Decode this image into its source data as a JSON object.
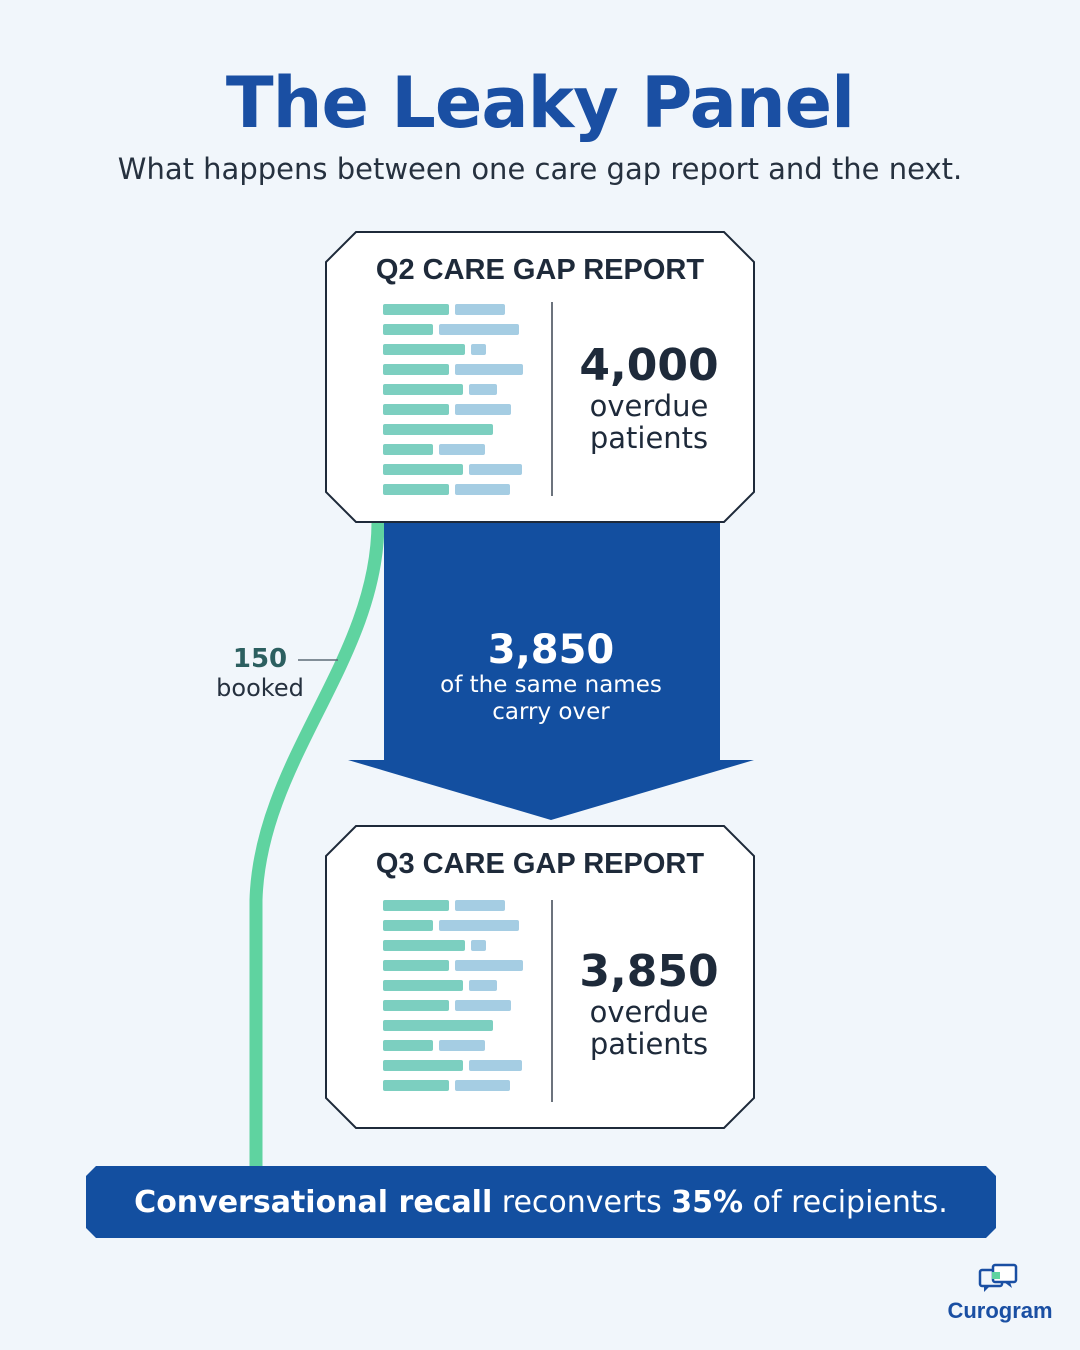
{
  "title": "The Leaky Panel",
  "subtitle": "What happens between one care gap report and the next.",
  "cards": [
    {
      "title": "Q2 CARE GAP REPORT",
      "value": "4,000",
      "unit_line1": "overdue",
      "unit_line2": "patients"
    },
    {
      "title": "Q3 CARE GAP REPORT",
      "value": "3,850",
      "unit_line1": "overdue",
      "unit_line2": "patients"
    }
  ],
  "carry_over": {
    "value": "3,850",
    "line1": "of the same names",
    "line2": "carry over"
  },
  "booked": {
    "value": "150",
    "label": "booked"
  },
  "banner": {
    "part1": "Conversational recall",
    "part2": " reconverts ",
    "part3": "35%",
    "part4": " of recipients."
  },
  "brand": {
    "name": "Curogram",
    "icon": "chat-bubbles-icon"
  },
  "colors": {
    "primary_blue": "#1a4fa3",
    "arrow_blue": "#134fa0",
    "green_line": "#5fd3a0",
    "bar_teal": "#7ccfc0",
    "bar_blue": "#a5cde3"
  }
}
